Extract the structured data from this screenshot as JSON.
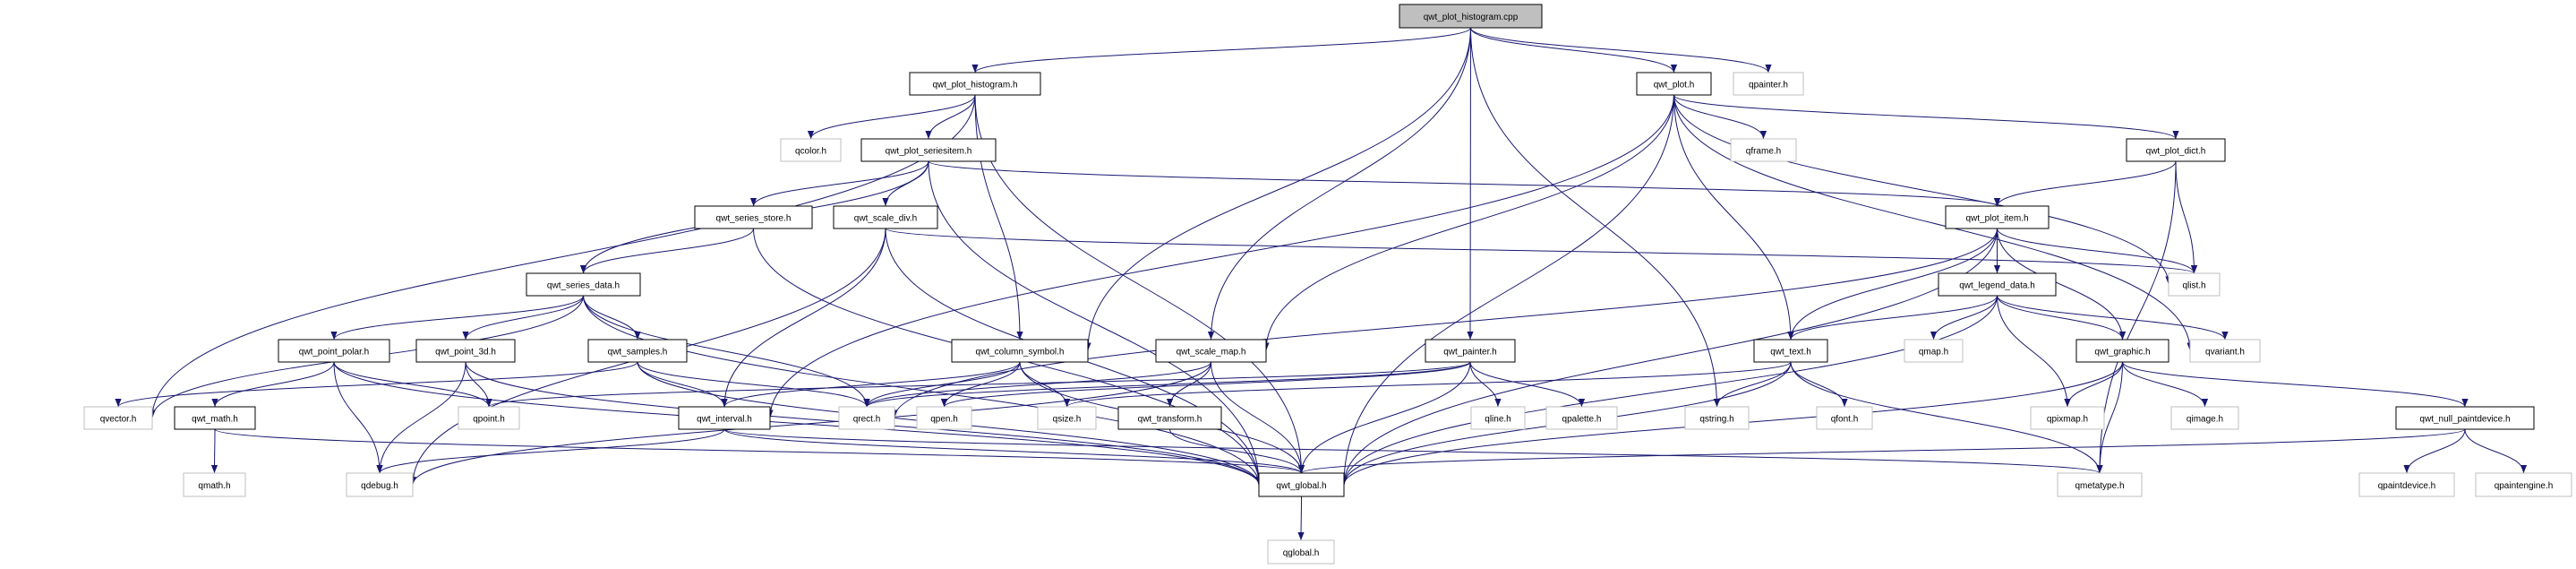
{
  "diagram": {
    "type": "include-dependency-graph",
    "colors": {
      "edge": "#191970",
      "root_fill": "#bfbfbf",
      "internal_border": "#000000",
      "external_border": "#bfbfbf"
    },
    "nodes": [
      {
        "id": "cpp",
        "label": "qwt_plot_histogram.cpp",
        "kind": "root"
      },
      {
        "id": "plot_histogram",
        "label": "qwt_plot_histogram.h",
        "kind": "internal"
      },
      {
        "id": "plot",
        "label": "qwt_plot.h",
        "kind": "internal"
      },
      {
        "id": "qpainter",
        "label": "qpainter.h",
        "kind": "external"
      },
      {
        "id": "qcolor",
        "label": "qcolor.h",
        "kind": "external"
      },
      {
        "id": "seriesitem",
        "label": "qwt_plot_seriesitem.h",
        "kind": "internal"
      },
      {
        "id": "qframe",
        "label": "qframe.h",
        "kind": "external"
      },
      {
        "id": "plot_dict",
        "label": "qwt_plot_dict.h",
        "kind": "internal"
      },
      {
        "id": "series_store",
        "label": "qwt_series_store.h",
        "kind": "internal"
      },
      {
        "id": "scale_div",
        "label": "qwt_scale_div.h",
        "kind": "internal"
      },
      {
        "id": "plot_item",
        "label": "qwt_plot_item.h",
        "kind": "internal"
      },
      {
        "id": "series_data",
        "label": "qwt_series_data.h",
        "kind": "internal"
      },
      {
        "id": "legend_data",
        "label": "qwt_legend_data.h",
        "kind": "internal"
      },
      {
        "id": "qlist",
        "label": "qlist.h",
        "kind": "external"
      },
      {
        "id": "point_polar",
        "label": "qwt_point_polar.h",
        "kind": "internal"
      },
      {
        "id": "point_3d",
        "label": "qwt_point_3d.h",
        "kind": "internal"
      },
      {
        "id": "samples",
        "label": "qwt_samples.h",
        "kind": "internal"
      },
      {
        "id": "column_symbol",
        "label": "qwt_column_symbol.h",
        "kind": "internal"
      },
      {
        "id": "scale_map",
        "label": "qwt_scale_map.h",
        "kind": "internal"
      },
      {
        "id": "painter",
        "label": "qwt_painter.h",
        "kind": "internal"
      },
      {
        "id": "text",
        "label": "qwt_text.h",
        "kind": "internal"
      },
      {
        "id": "qmap",
        "label": "qmap.h",
        "kind": "external"
      },
      {
        "id": "graphic",
        "label": "qwt_graphic.h",
        "kind": "internal"
      },
      {
        "id": "qvariant",
        "label": "qvariant.h",
        "kind": "external"
      },
      {
        "id": "qvector",
        "label": "qvector.h",
        "kind": "external"
      },
      {
        "id": "math",
        "label": "qwt_math.h",
        "kind": "internal"
      },
      {
        "id": "qpoint",
        "label": "qpoint.h",
        "kind": "external"
      },
      {
        "id": "interval",
        "label": "qwt_interval.h",
        "kind": "internal"
      },
      {
        "id": "qrect",
        "label": "qrect.h",
        "kind": "external"
      },
      {
        "id": "qpen",
        "label": "qpen.h",
        "kind": "external"
      },
      {
        "id": "qsize",
        "label": "qsize.h",
        "kind": "external"
      },
      {
        "id": "transform",
        "label": "qwt_transform.h",
        "kind": "internal"
      },
      {
        "id": "qline",
        "label": "qline.h",
        "kind": "external"
      },
      {
        "id": "qpalette",
        "label": "qpalette.h",
        "kind": "external"
      },
      {
        "id": "qstring",
        "label": "qstring.h",
        "kind": "external"
      },
      {
        "id": "qfont",
        "label": "qfont.h",
        "kind": "external"
      },
      {
        "id": "qpixmap",
        "label": "qpixmap.h",
        "kind": "external"
      },
      {
        "id": "qimage",
        "label": "qimage.h",
        "kind": "external"
      },
      {
        "id": "null_paintdevice",
        "label": "qwt_null_paintdevice.h",
        "kind": "internal"
      },
      {
        "id": "qmath",
        "label": "qmath.h",
        "kind": "external"
      },
      {
        "id": "qdebug",
        "label": "qdebug.h",
        "kind": "external"
      },
      {
        "id": "global",
        "label": "qwt_global.h",
        "kind": "internal"
      },
      {
        "id": "qmetatype",
        "label": "qmetatype.h",
        "kind": "external"
      },
      {
        "id": "qpaintdevice",
        "label": "qpaintdevice.h",
        "kind": "external"
      },
      {
        "id": "qpaintengine",
        "label": "qpaintengine.h",
        "kind": "external"
      },
      {
        "id": "qglobal",
        "label": "qglobal.h",
        "kind": "external"
      }
    ],
    "edges": [
      [
        "cpp",
        "plot_histogram"
      ],
      [
        "cpp",
        "plot"
      ],
      [
        "cpp",
        "qpainter"
      ],
      [
        "cpp",
        "column_symbol"
      ],
      [
        "cpp",
        "scale_map"
      ],
      [
        "cpp",
        "painter"
      ],
      [
        "cpp",
        "qstring"
      ],
      [
        "plot_histogram",
        "qvector"
      ],
      [
        "plot_histogram",
        "qcolor"
      ],
      [
        "plot_histogram",
        "seriesitem"
      ],
      [
        "plot_histogram",
        "column_symbol"
      ],
      [
        "plot_histogram",
        "global"
      ],
      [
        "seriesitem",
        "series_data"
      ],
      [
        "seriesitem",
        "series_store"
      ],
      [
        "seriesitem",
        "scale_div"
      ],
      [
        "seriesitem",
        "plot_item"
      ],
      [
        "seriesitem",
        "global"
      ],
      [
        "series_store",
        "series_data"
      ],
      [
        "series_store",
        "global"
      ],
      [
        "scale_div",
        "qdebug"
      ],
      [
        "scale_div",
        "interval"
      ],
      [
        "scale_div",
        "qlist"
      ],
      [
        "scale_div",
        "global"
      ],
      [
        "series_data",
        "qvector"
      ],
      [
        "series_data",
        "point_polar"
      ],
      [
        "series_data",
        "point_3d"
      ],
      [
        "series_data",
        "samples"
      ],
      [
        "series_data",
        "qrect"
      ],
      [
        "series_data",
        "global"
      ],
      [
        "point_polar",
        "math"
      ],
      [
        "point_polar",
        "qpoint"
      ],
      [
        "point_polar",
        "qdebug"
      ],
      [
        "point_polar",
        "global"
      ],
      [
        "point_3d",
        "qpoint"
      ],
      [
        "point_3d",
        "qdebug"
      ],
      [
        "point_3d",
        "global"
      ],
      [
        "samples",
        "qvector"
      ],
      [
        "samples",
        "interval"
      ],
      [
        "samples",
        "qrect"
      ],
      [
        "samples",
        "global"
      ],
      [
        "column_symbol",
        "qrect"
      ],
      [
        "column_symbol",
        "qpen"
      ],
      [
        "column_symbol",
        "qsize"
      ],
      [
        "column_symbol",
        "interval"
      ],
      [
        "column_symbol",
        "global"
      ],
      [
        "scale_map",
        "qrect"
      ],
      [
        "scale_map",
        "transform"
      ],
      [
        "scale_map",
        "global"
      ],
      [
        "scale_map",
        "qdebug"
      ],
      [
        "math",
        "qmath"
      ],
      [
        "math",
        "global"
      ],
      [
        "interval",
        "qdebug"
      ],
      [
        "interval",
        "global"
      ],
      [
        "interval",
        "qmetatype"
      ],
      [
        "transform",
        "global"
      ],
      [
        "global",
        "qglobal"
      ],
      [
        "plot",
        "qframe"
      ],
      [
        "plot",
        "plot_dict"
      ],
      [
        "plot",
        "qlist"
      ],
      [
        "plot",
        "qvariant"
      ],
      [
        "plot",
        "text"
      ],
      [
        "plot",
        "global"
      ],
      [
        "plot",
        "scale_map"
      ],
      [
        "plot",
        "interval"
      ],
      [
        "plot_dict",
        "plot_item"
      ],
      [
        "plot_dict",
        "qlist"
      ],
      [
        "plot_dict",
        "qmetatype"
      ],
      [
        "plot_item",
        "qlist"
      ],
      [
        "plot_item",
        "legend_data"
      ],
      [
        "plot_item",
        "text"
      ],
      [
        "plot_item",
        "graphic"
      ],
      [
        "plot_item",
        "global"
      ],
      [
        "plot_item",
        "qrect"
      ],
      [
        "legend_data",
        "text"
      ],
      [
        "legend_data",
        "qmap"
      ],
      [
        "legend_data",
        "graphic"
      ],
      [
        "legend_data",
        "qvariant"
      ],
      [
        "legend_data",
        "qpixmap"
      ],
      [
        "legend_data",
        "global"
      ],
      [
        "painter",
        "qrect"
      ],
      [
        "painter",
        "qpoint"
      ],
      [
        "painter",
        "qpen"
      ],
      [
        "painter",
        "qline"
      ],
      [
        "painter",
        "qpalette"
      ],
      [
        "painter",
        "global"
      ],
      [
        "text",
        "qstring"
      ],
      [
        "text",
        "qfont"
      ],
      [
        "text",
        "qmetatype"
      ],
      [
        "text",
        "global"
      ],
      [
        "text",
        "qsize"
      ],
      [
        "graphic",
        "qpixmap"
      ],
      [
        "graphic",
        "qimage"
      ],
      [
        "graphic",
        "null_paintdevice"
      ],
      [
        "graphic",
        "qmetatype"
      ],
      [
        "graphic",
        "global"
      ],
      [
        "null_paintdevice",
        "qpaintdevice"
      ],
      [
        "null_paintdevice",
        "qpaintengine"
      ],
      [
        "null_paintdevice",
        "global"
      ]
    ]
  }
}
